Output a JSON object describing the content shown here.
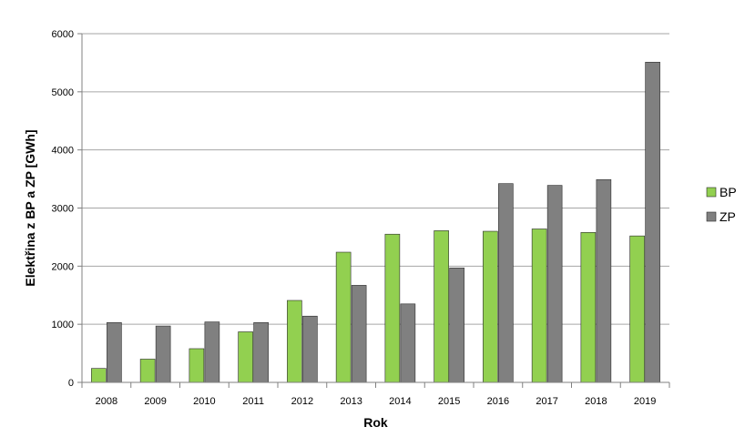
{
  "chart_data": {
    "type": "bar",
    "title": "",
    "xlabel": "Rok",
    "ylabel": "Elektřina z BP a ZP [GWh]",
    "categories": [
      "2008",
      "2009",
      "2010",
      "2011",
      "2012",
      "2013",
      "2014",
      "2015",
      "2016",
      "2017",
      "2018",
      "2019"
    ],
    "series": [
      {
        "name": "BP",
        "color": "#92d050",
        "values": [
          240,
          400,
          580,
          870,
          1410,
          2240,
          2550,
          2610,
          2600,
          2640,
          2580,
          2520
        ]
      },
      {
        "name": "ZP",
        "color": "#808080",
        "values": [
          1030,
          970,
          1040,
          1030,
          1140,
          1670,
          1350,
          1970,
          3420,
          3390,
          3490,
          5510
        ]
      }
    ],
    "ylim": [
      0,
      6000
    ],
    "yticks": [
      0,
      1000,
      2000,
      3000,
      4000,
      5000,
      6000
    ],
    "grid": true,
    "legend_position": "right"
  }
}
